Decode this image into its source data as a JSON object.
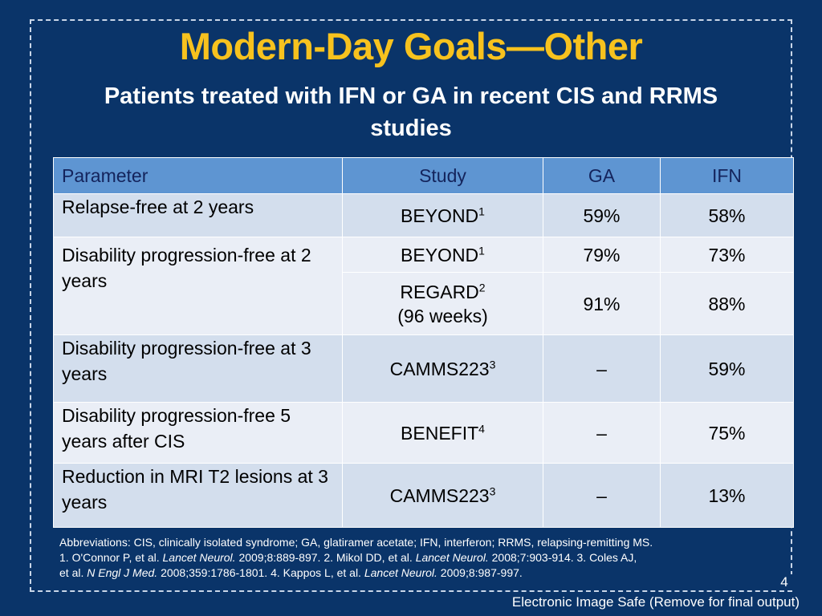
{
  "title": "Modern-Day Goals—Other",
  "subtitle": "Patients treated with IFN or GA in recent CIS and RRMS studies",
  "table": {
    "headers": [
      "Parameter",
      "Study",
      "GA",
      "IFN"
    ],
    "rows": [
      {
        "parameter": "Relapse-free at 2 years",
        "study": "BEYOND",
        "ref": "1",
        "ga": "59%",
        "ifn": "58%"
      },
      {
        "parameter": "Disability progression-free at 2 years",
        "study": "BEYOND",
        "ref": "1",
        "ga": "79%",
        "ifn": "73%"
      },
      {
        "parameter": "",
        "study": "REGARD",
        "ref": "2",
        "study_note": "(96 weeks)",
        "ga": "91%",
        "ifn": "88%"
      },
      {
        "parameter": "Disability progression-free at 3 years",
        "study": "CAMMS223",
        "ref": "3",
        "ga": "–",
        "ifn": "59%"
      },
      {
        "parameter": "Disability progression-free 5 years after CIS",
        "study": "BENEFIT",
        "ref": "4",
        "ga": "–",
        "ifn": "75%"
      },
      {
        "parameter": "Reduction in MRI T2 lesions at 3 years",
        "study": "CAMMS223",
        "ref": "3",
        "ga": "–",
        "ifn": "13%"
      }
    ]
  },
  "footnote": {
    "abbreviations": "Abbreviations: CIS, clinically isolated syndrome; GA, glatiramer acetate; IFN, interferon; RRMS, relapsing-remitting MS.",
    "ref1_text": "1. O'Connor P, et al. ",
    "ref1_journal": "Lancet Neurol.",
    "ref1_cite": " 2009;8:889-897. 2. Mikol DD, et al. ",
    "ref2_journal": "Lancet Neurol.",
    "ref2_cite": " 2008;7:903-914. 3. Coles AJ,",
    "ref3_text": "et al. ",
    "ref3_journal": "N Engl J Med.",
    "ref3_cite": " 2008;359:1786-1801. 4. Kappos L, et al. ",
    "ref4_journal": "Lancet Neurol.",
    "ref4_cite": " 2009;8:987-997."
  },
  "page_number": "4",
  "watermark": "Electronic Image Safe (Remove for final output)",
  "colors": {
    "background": "#0a3469",
    "title": "#f7c21e",
    "header_row": "#5e95d2",
    "row_light": "#d3deed",
    "row_pale": "#eaeef6"
  }
}
